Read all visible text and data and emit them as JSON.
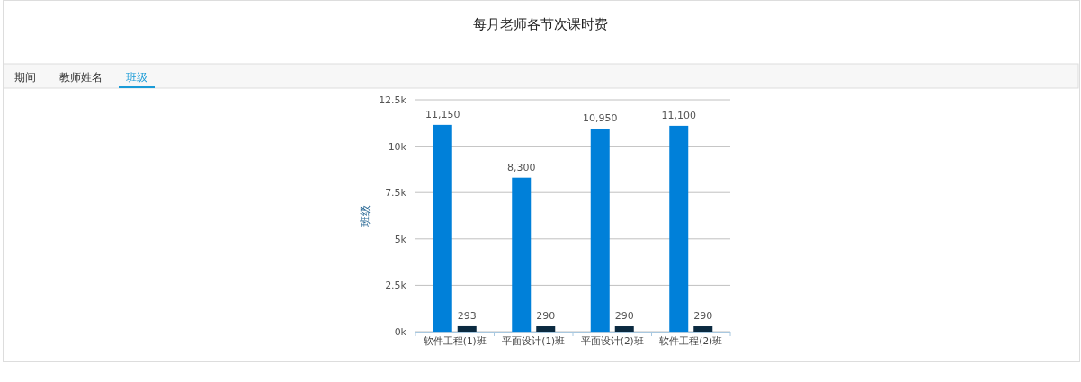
{
  "chart_data": {
    "type": "bar",
    "title": "每月老师各节次课时费",
    "ylabel": "班级",
    "categories": [
      "软件工程(1)班",
      "平面设计(1)班",
      "平面设计(2)班",
      "软件工程(2)班"
    ],
    "series": [
      {
        "color": "#0080d9",
        "values": [
          11150,
          8300,
          10950,
          11100
        ],
        "value_labels": [
          "11,150",
          "8,300",
          "10,950",
          "11,100"
        ]
      },
      {
        "color": "#0b2a40",
        "values": [
          293,
          290,
          290,
          290
        ],
        "value_labels": [
          "293",
          "290",
          "290",
          "290"
        ]
      }
    ],
    "ylim": [
      0,
      12500
    ],
    "yticks": [
      {
        "value": 0,
        "label": "0k"
      },
      {
        "value": 2500,
        "label": "2.5k"
      },
      {
        "value": 5000,
        "label": "5k"
      },
      {
        "value": 7500,
        "label": "7.5k"
      },
      {
        "value": 10000,
        "label": "10k"
      },
      {
        "value": 12500,
        "label": "12.5k"
      }
    ],
    "grid": "y",
    "annotations": [
      "期间",
      "教师姓名",
      "班级"
    ]
  }
}
